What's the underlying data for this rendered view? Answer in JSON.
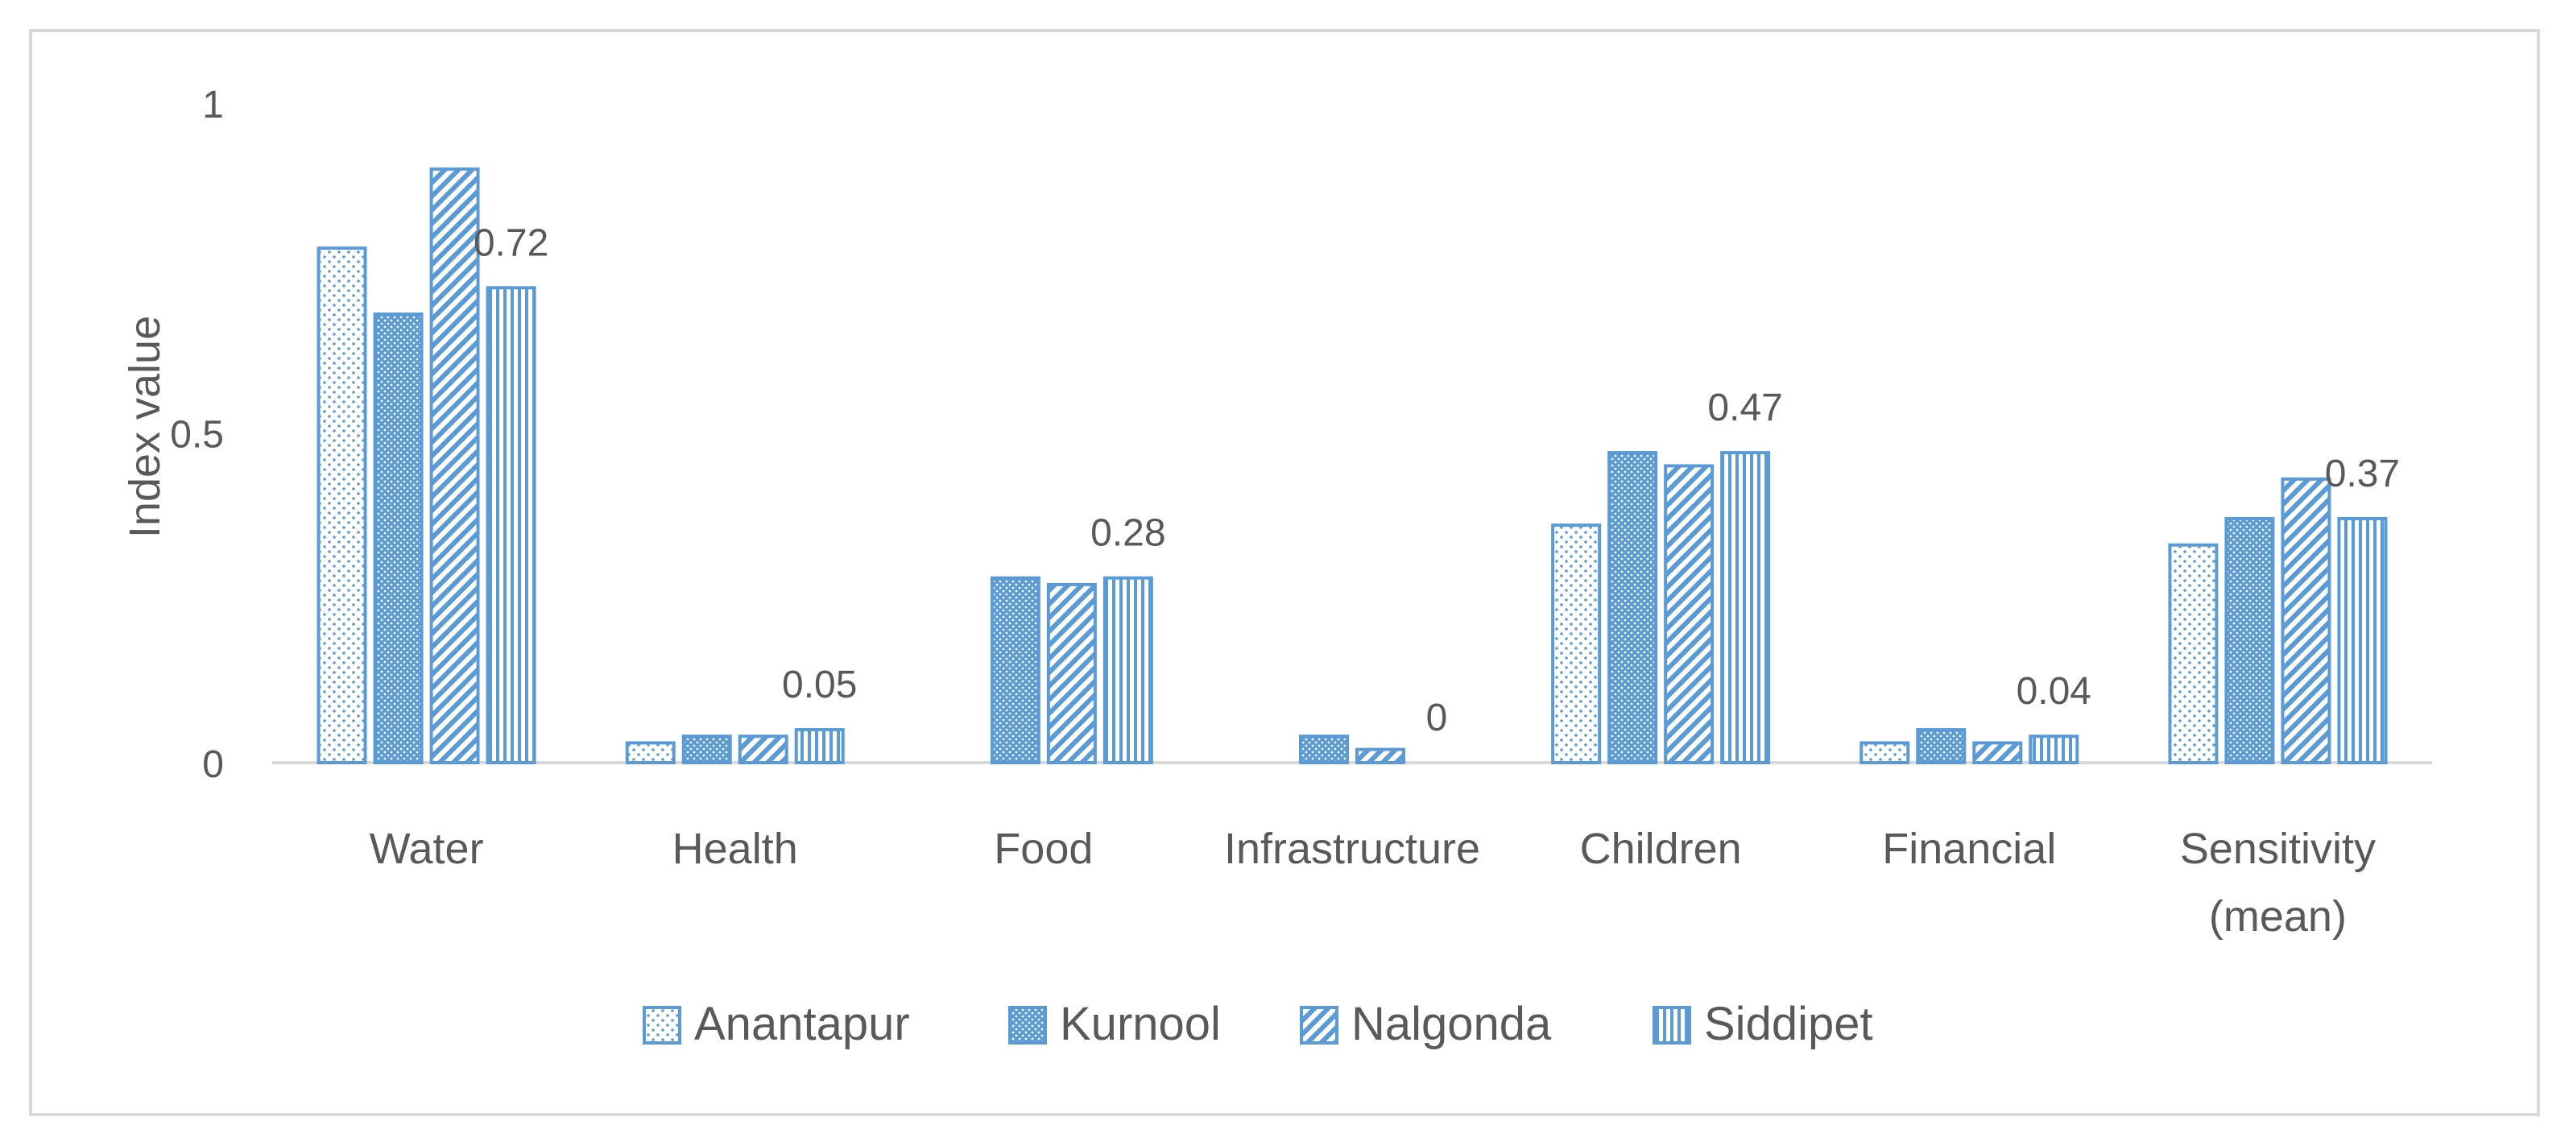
{
  "chart_data": {
    "type": "bar",
    "title": "",
    "xlabel": "",
    "ylabel": "Index value",
    "ylim": [
      0,
      1
    ],
    "yticks": [
      {
        "value": 0,
        "label": "0"
      },
      {
        "value": 0.5,
        "label": "0.5"
      },
      {
        "value": 1,
        "label": "1"
      }
    ],
    "grid": false,
    "legend_position": "bottom",
    "categories": [
      [
        "Water"
      ],
      [
        "Health"
      ],
      [
        "Food"
      ],
      [
        "Infrastructure"
      ],
      [
        "Children"
      ],
      [
        "Financial"
      ],
      [
        "Sensitivity",
        "(mean)"
      ]
    ],
    "series": [
      {
        "name": "Anantapur",
        "pattern": "dots-sparse",
        "values": [
          0.78,
          0.03,
          null,
          null,
          0.36,
          0.03,
          0.33
        ]
      },
      {
        "name": "Kurnool",
        "pattern": "dots-dense",
        "values": [
          0.68,
          0.04,
          0.28,
          0.04,
          0.47,
          0.05,
          0.37
        ]
      },
      {
        "name": "Nalgonda",
        "pattern": "diagonal",
        "values": [
          0.9,
          0.04,
          0.27,
          0.02,
          0.45,
          0.03,
          0.43
        ]
      },
      {
        "name": "Siddipet",
        "pattern": "vertical",
        "values": [
          0.72,
          0.05,
          0.28,
          0,
          0.47,
          0.04,
          0.37
        ]
      }
    ],
    "data_labels": [
      {
        "category": 0,
        "series": 3,
        "text": "0.72"
      },
      {
        "category": 1,
        "series": 3,
        "text": "0.05"
      },
      {
        "category": 2,
        "series": 3,
        "text": "0.28"
      },
      {
        "category": 3,
        "series": 3,
        "text": "0"
      },
      {
        "category": 4,
        "series": 3,
        "text": "0.47"
      },
      {
        "category": 5,
        "series": 3,
        "text": "0.04"
      },
      {
        "category": 6,
        "series": 3,
        "text": "0.37"
      }
    ],
    "colors": {
      "bar_stroke": "#5b9bd5",
      "axis": "#d9d9d9",
      "text": "#595959"
    }
  }
}
